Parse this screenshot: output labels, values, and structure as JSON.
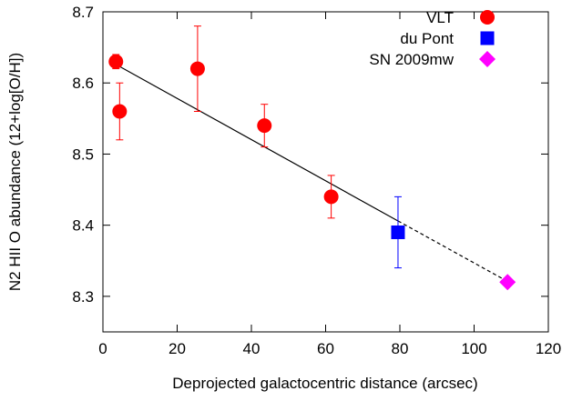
{
  "chart_data": {
    "type": "scatter",
    "xlabel": "Deprojected galactocentric distance (arcsec)",
    "ylabel": "N2 HII O abundance (12+log[O/H])",
    "xlim": [
      0,
      120
    ],
    "ylim": [
      8.25,
      8.7
    ],
    "xticks": [
      "0",
      "20",
      "40",
      "60",
      "80",
      "100",
      "120"
    ],
    "yticks": [
      "8.3",
      "8.4",
      "8.5",
      "8.6",
      "8.7"
    ],
    "legend_position": "top-right",
    "series": [
      {
        "name": "VLT",
        "color": "#ff0000",
        "marker": "circle",
        "points": [
          {
            "x": 3.5,
            "y": 8.63,
            "err_low": 8.62,
            "err_high": 8.64
          },
          {
            "x": 4.5,
            "y": 8.56,
            "err_low": 8.52,
            "err_high": 8.6
          },
          {
            "x": 25.5,
            "y": 8.62,
            "err_low": 8.56,
            "err_high": 8.68
          },
          {
            "x": 43.5,
            "y": 8.54,
            "err_low": 8.51,
            "err_high": 8.57
          },
          {
            "x": 61.5,
            "y": 8.44,
            "err_low": 8.41,
            "err_high": 8.47
          }
        ]
      },
      {
        "name": "du Pont",
        "color": "#0000ff",
        "marker": "square",
        "points": [
          {
            "x": 79.5,
            "y": 8.39,
            "err_low": 8.34,
            "err_high": 8.44
          }
        ]
      },
      {
        "name": "SN 2009mw",
        "color": "#ff00ff",
        "marker": "diamond",
        "points": [
          {
            "x": 109,
            "y": 8.32
          }
        ]
      }
    ],
    "fit_lines": [
      {
        "style": "solid",
        "x1": 3.5,
        "y1": 8.626,
        "x2": 79.5,
        "y2": 8.406
      },
      {
        "style": "dashed",
        "x1": 79.5,
        "y1": 8.406,
        "x2": 109,
        "y2": 8.321
      }
    ]
  }
}
